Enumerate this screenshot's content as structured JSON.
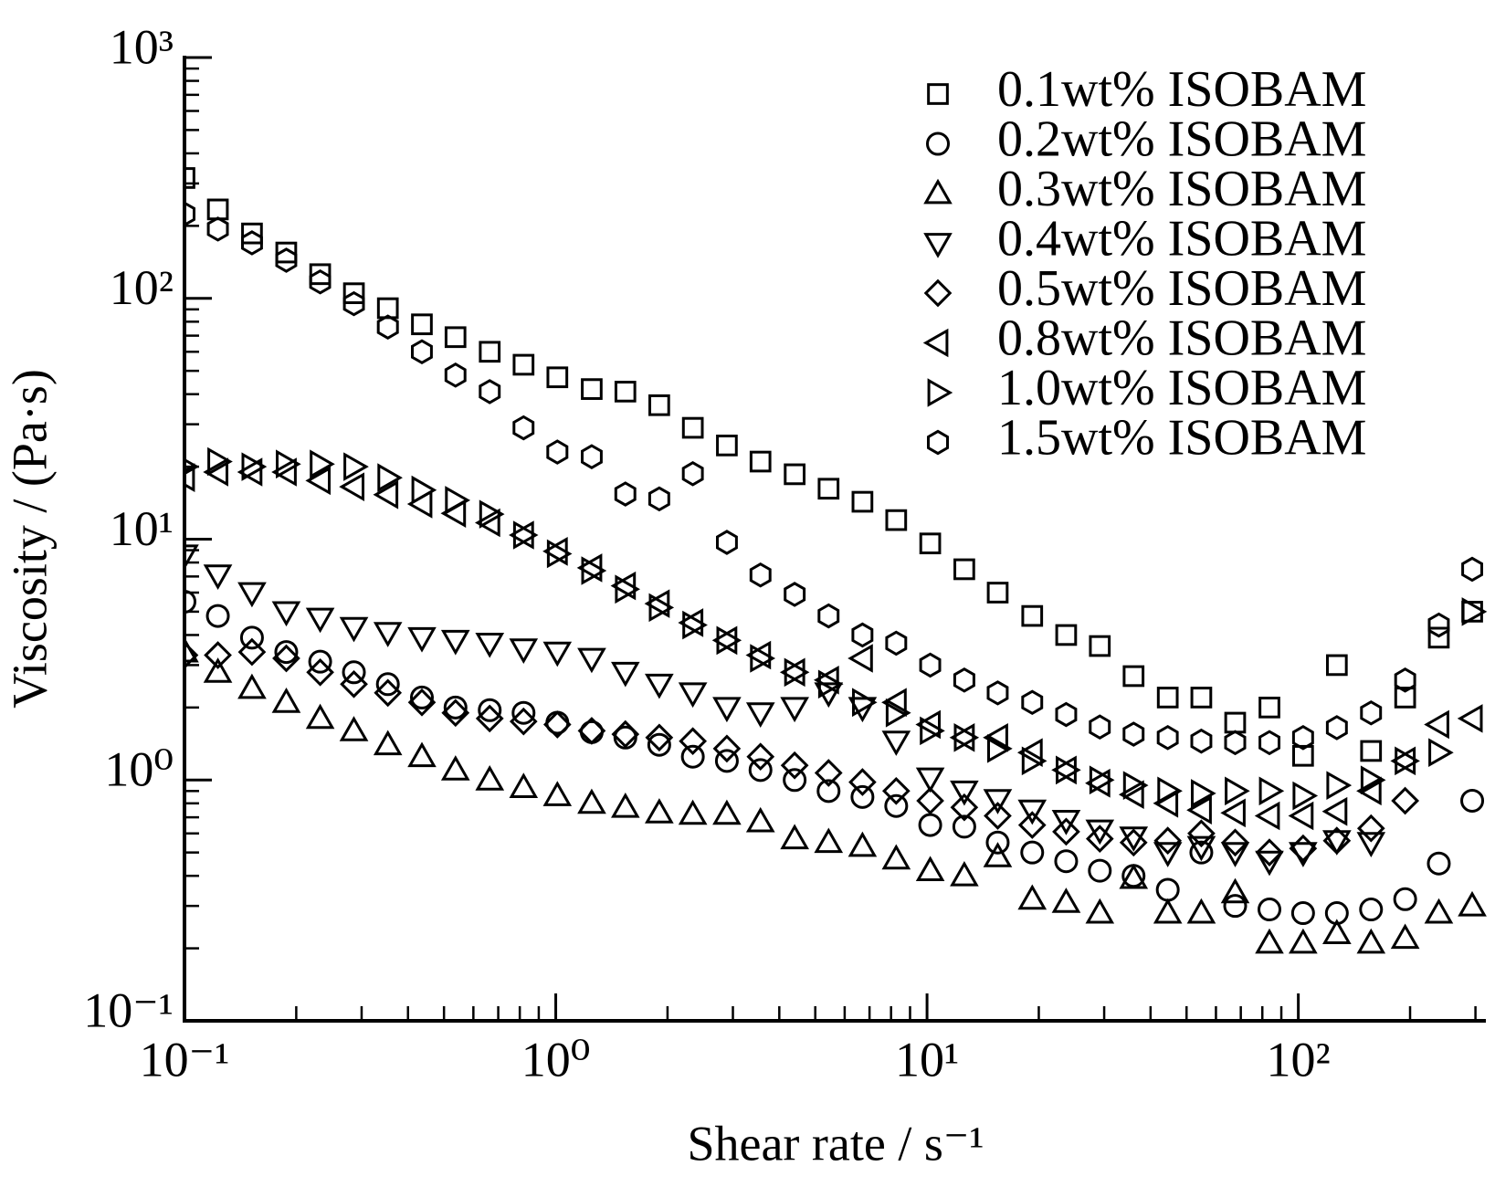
{
  "chart_data": {
    "type": "scatter",
    "xlabel": "Shear rate / s⁻¹",
    "ylabel": "Viscosity / (Pa·s)",
    "xscale": "log",
    "yscale": "log",
    "minor_ticks": true,
    "xlim": [
      0.1,
      320
    ],
    "ylim": [
      0.1,
      1000
    ],
    "xticks": [
      {
        "value": 0.1,
        "label": "10⁻¹"
      },
      {
        "value": 1,
        "label": "10⁰"
      },
      {
        "value": 10,
        "label": "10¹"
      },
      {
        "value": 100,
        "label": "10²"
      }
    ],
    "yticks": [
      {
        "value": 0.1,
        "label": "10⁻¹"
      },
      {
        "value": 1,
        "label": "10⁰"
      },
      {
        "value": 10,
        "label": "10¹"
      },
      {
        "value": 100,
        "label": "10²"
      },
      {
        "value": 1000,
        "label": "10³"
      }
    ],
    "legend": "upper right",
    "x": [
      0.1,
      0.123,
      0.152,
      0.188,
      0.232,
      0.286,
      0.353,
      0.436,
      0.537,
      0.664,
      0.819,
      1.01,
      1.25,
      1.54,
      1.9,
      2.34,
      2.89,
      3.56,
      4.4,
      5.43,
      6.7,
      8.26,
      10.2,
      12.6,
      15.5,
      19.2,
      23.7,
      29.2,
      36.0,
      44.5,
      54.8,
      67.6,
      83.6,
      103,
      127,
      157,
      194,
      239,
      294
    ],
    "series": [
      {
        "name": "0.1wt% ISOBAM",
        "color": "#000000",
        "marker": "square",
        "values": [
          316,
          234,
          186,
          155,
          126,
          105,
          91,
          78,
          69,
          60,
          53,
          47,
          42,
          41,
          36,
          29,
          24.5,
          21,
          18.6,
          16.2,
          14.3,
          12.0,
          9.6,
          7.5,
          6.0,
          4.8,
          4.0,
          3.6,
          2.7,
          2.2,
          2.2,
          1.73,
          2.0,
          1.26,
          3.0,
          1.32,
          2.2,
          3.9,
          5.0
        ]
      },
      {
        "name": "0.2wt% ISOBAM",
        "color": "#000000",
        "marker": "circle",
        "values": [
          5.5,
          4.8,
          3.9,
          3.4,
          3.1,
          2.8,
          2.5,
          2.2,
          2.0,
          1.95,
          1.9,
          1.73,
          1.58,
          1.5,
          1.4,
          1.25,
          1.2,
          1.1,
          1.0,
          0.9,
          0.85,
          0.78,
          0.65,
          0.64,
          0.55,
          0.5,
          0.46,
          0.42,
          0.4,
          0.35,
          0.5,
          0.3,
          0.29,
          0.28,
          0.28,
          0.29,
          0.32,
          0.45,
          0.82
        ]
      },
      {
        "name": "0.3wt% ISOBAM",
        "color": "#000000",
        "marker": "triangle-up",
        "values": [
          3.4,
          2.8,
          2.4,
          2.1,
          1.8,
          1.6,
          1.4,
          1.25,
          1.1,
          1.0,
          0.93,
          0.86,
          0.8,
          0.77,
          0.73,
          0.72,
          0.72,
          0.67,
          0.57,
          0.55,
          0.53,
          0.47,
          0.42,
          0.4,
          0.48,
          0.32,
          0.31,
          0.28,
          0.39,
          0.28,
          0.28,
          0.34,
          0.21,
          0.21,
          0.23,
          0.21,
          0.22,
          0.28,
          0.3
        ]
      },
      {
        "name": "0.4wt% ISOBAM",
        "color": "#000000",
        "marker": "triangle-down",
        "values": [
          8.6,
          7.1,
          6.0,
          5.0,
          4.7,
          4.3,
          4.1,
          3.9,
          3.8,
          3.7,
          3.5,
          3.4,
          3.2,
          2.8,
          2.5,
          2.3,
          2.0,
          1.9,
          2.0,
          2.3,
          2.0,
          1.45,
          1.02,
          0.9,
          0.83,
          0.75,
          0.68,
          0.62,
          0.58,
          0.5,
          0.53,
          0.5,
          0.46,
          0.5,
          0.56,
          0.55,
          null,
          null,
          null
        ]
      },
      {
        "name": "0.5wt% ISOBAM",
        "color": "#000000",
        "marker": "diamond",
        "values": [
          3.3,
          3.3,
          3.4,
          3.2,
          2.8,
          2.5,
          2.3,
          2.1,
          1.9,
          1.8,
          1.75,
          1.7,
          1.6,
          1.55,
          1.5,
          1.45,
          1.35,
          1.25,
          1.15,
          1.07,
          0.98,
          0.9,
          0.82,
          0.77,
          0.71,
          0.65,
          0.61,
          0.57,
          0.55,
          0.56,
          0.6,
          0.55,
          0.5,
          0.52,
          0.56,
          0.63,
          0.82,
          null,
          null
        ]
      },
      {
        "name": "0.8wt% ISOBAM",
        "color": "#000000",
        "marker": "triangle-left",
        "values": [
          18,
          19,
          19,
          19,
          17.5,
          16.5,
          15.3,
          14,
          12.8,
          11.7,
          10.4,
          8.9,
          7.6,
          6.4,
          5.4,
          4.5,
          3.8,
          3.3,
          2.8,
          2.6,
          3.2,
          2.1,
          1.7,
          1.5,
          1.5,
          1.3,
          1.1,
          0.97,
          0.87,
          0.8,
          0.75,
          0.73,
          0.71,
          0.71,
          0.74,
          0.9,
          1.2,
          1.7,
          1.8
        ]
      },
      {
        "name": "1.0wt% ISOBAM",
        "color": "#000000",
        "marker": "triangle-right",
        "values": [
          20,
          21,
          20,
          20.5,
          20.5,
          20,
          18,
          16,
          14.5,
          12.7,
          10.4,
          8.7,
          7.4,
          6.2,
          5.2,
          4.4,
          3.8,
          3.2,
          2.8,
          2.5,
          2.1,
          1.9,
          1.6,
          1.5,
          1.35,
          1.2,
          1.1,
          1.0,
          0.95,
          0.9,
          0.88,
          0.9,
          0.9,
          0.86,
          0.95,
          1.0,
          1.2,
          1.3,
          5.0
        ]
      },
      {
        "name": "1.5wt% ISOBAM",
        "color": "#000000",
        "marker": "hexagon",
        "values": [
          224,
          194,
          170,
          144,
          117,
          95,
          76,
          60,
          48,
          41,
          29,
          23,
          22,
          15.4,
          14.7,
          18.7,
          9.7,
          7.1,
          5.9,
          4.8,
          4.0,
          3.7,
          3.0,
          2.6,
          2.3,
          2.1,
          1.87,
          1.66,
          1.55,
          1.5,
          1.45,
          1.43,
          1.43,
          1.5,
          1.65,
          1.9,
          2.6,
          4.4,
          7.5
        ]
      }
    ]
  }
}
